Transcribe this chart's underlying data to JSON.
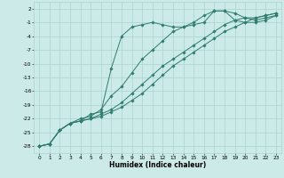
{
  "xlabel": "Humidex (Indice chaleur)",
  "ylabel": "",
  "bg_color": "#cceae7",
  "grid_color": "#aad4d0",
  "line_color": "#2e7d6e",
  "xlim": [
    -0.5,
    23.5
  ],
  "ylim": [
    -29.5,
    3.5
  ],
  "yticks": [
    2,
    -1,
    -4,
    -7,
    -10,
    -13,
    -16,
    -19,
    -22,
    -25,
    -28
  ],
  "xticks": [
    0,
    1,
    2,
    3,
    4,
    5,
    6,
    7,
    8,
    9,
    10,
    11,
    12,
    13,
    14,
    15,
    16,
    17,
    18,
    19,
    20,
    21,
    22,
    23
  ],
  "series": [
    {
      "x": [
        0,
        1,
        2,
        3,
        4,
        5,
        6,
        7,
        8,
        9,
        10,
        11,
        12,
        13,
        14,
        15,
        16,
        17,
        18,
        19,
        20,
        21,
        22,
        23
      ],
      "y": [
        -28,
        -27.5,
        -24.5,
        -23,
        -22.5,
        -21,
        -20.5,
        -11,
        -4,
        -2,
        -1.5,
        -1,
        -1.5,
        -2,
        -2,
        -1.5,
        -1,
        1.5,
        1.5,
        -0.5,
        -1,
        -1,
        -0.5,
        0.5
      ]
    },
    {
      "x": [
        0,
        1,
        2,
        3,
        4,
        5,
        6,
        7,
        8,
        9,
        10,
        11,
        12,
        13,
        14,
        15,
        16,
        17,
        18,
        19,
        20,
        21,
        22,
        23
      ],
      "y": [
        -28,
        -27.5,
        -24.5,
        -23,
        -22,
        -21.5,
        -20,
        -17,
        -15,
        -12,
        -9,
        -7,
        -5,
        -3,
        -2,
        -1,
        0.5,
        1.5,
        1.5,
        1,
        0,
        -0.5,
        0,
        0.5
      ]
    },
    {
      "x": [
        0,
        1,
        2,
        3,
        4,
        5,
        6,
        7,
        8,
        9,
        10,
        11,
        12,
        13,
        14,
        15,
        16,
        17,
        18,
        19,
        20,
        21,
        22,
        23
      ],
      "y": [
        -28,
        -27.5,
        -24.5,
        -23,
        -22.5,
        -22,
        -21,
        -20,
        -18.5,
        -16.5,
        -14.5,
        -12.5,
        -10.5,
        -9,
        -7.5,
        -6,
        -4.5,
        -3,
        -1.5,
        -0.5,
        0,
        0,
        0.5,
        1
      ]
    },
    {
      "x": [
        0,
        1,
        2,
        3,
        4,
        5,
        6,
        7,
        8,
        9,
        10,
        11,
        12,
        13,
        14,
        15,
        16,
        17,
        18,
        19,
        20,
        21,
        22,
        23
      ],
      "y": [
        -28,
        -27.5,
        -24.5,
        -23,
        -22.5,
        -22,
        -21.5,
        -20.5,
        -19.5,
        -18,
        -16.5,
        -14.5,
        -12.5,
        -10.5,
        -9,
        -7.5,
        -6,
        -4.5,
        -3,
        -2,
        -1,
        0,
        0.5,
        1
      ]
    }
  ],
  "markersize": 1.8,
  "linewidth": 0.7,
  "tick_fontsize": 4.2,
  "xlabel_fontsize": 5.5
}
